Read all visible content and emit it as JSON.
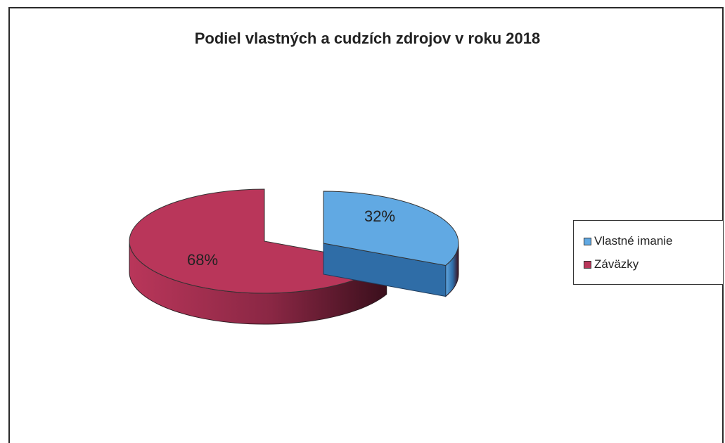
{
  "chart_data": {
    "type": "pie",
    "title": "Podiel vlastných a cudzích zdrojov v roku 2018",
    "categories": [
      "Vlastné imanie",
      "Záväzky"
    ],
    "values": [
      32,
      68
    ],
    "labels": [
      "32%",
      "68%"
    ],
    "colors": [
      "#61a9e3",
      "#b9365a"
    ],
    "side_colors": [
      "#2f6da7",
      "#8a2744"
    ],
    "legend_position": "right",
    "exploded": true
  }
}
